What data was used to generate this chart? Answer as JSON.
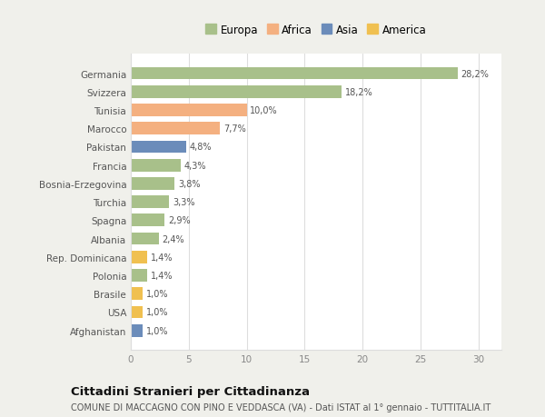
{
  "categories": [
    "Germania",
    "Svizzera",
    "Tunisia",
    "Marocco",
    "Pakistan",
    "Francia",
    "Bosnia-Erzegovina",
    "Turchia",
    "Spagna",
    "Albania",
    "Rep. Dominicana",
    "Polonia",
    "Brasile",
    "USA",
    "Afghanistan"
  ],
  "values": [
    28.2,
    18.2,
    10.0,
    7.7,
    4.8,
    4.3,
    3.8,
    3.3,
    2.9,
    2.4,
    1.4,
    1.4,
    1.0,
    1.0,
    1.0
  ],
  "labels": [
    "28,2%",
    "18,2%",
    "10,0%",
    "7,7%",
    "4,8%",
    "4,3%",
    "3,8%",
    "3,3%",
    "2,9%",
    "2,4%",
    "1,4%",
    "1,4%",
    "1,0%",
    "1,0%",
    "1,0%"
  ],
  "continents": [
    "Europa",
    "Europa",
    "Africa",
    "Africa",
    "Asia",
    "Europa",
    "Europa",
    "Europa",
    "Europa",
    "Europa",
    "America",
    "Europa",
    "America",
    "America",
    "Asia"
  ],
  "colors": {
    "Europa": "#a8c08a",
    "Africa": "#f4b080",
    "Asia": "#6b8cba",
    "America": "#f0c050"
  },
  "title": "Cittadini Stranieri per Cittadinanza",
  "subtitle": "COMUNE DI MACCAGNO CON PINO E VEDDASCA (VA) - Dati ISTAT al 1° gennaio - TUTTITALIA.IT",
  "xlim": [
    0,
    32
  ],
  "xticks": [
    0,
    5,
    10,
    15,
    20,
    25,
    30
  ],
  "background_color": "#f0f0eb",
  "plot_bg_color": "#ffffff",
  "grid_color": "#dddddd",
  "title_fontsize": 9.5,
  "subtitle_fontsize": 7,
  "bar_height": 0.68,
  "legend_marker_size": 10
}
